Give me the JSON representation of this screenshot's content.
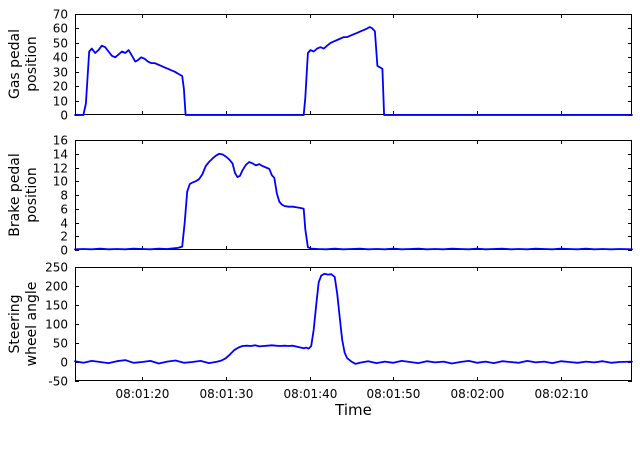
{
  "figure": {
    "background": "#ffffff",
    "line_color": "#0000ff",
    "axis_color": "#000000"
  },
  "x_axis": {
    "xlim": [
      72,
      138.5
    ],
    "xticks": [
      80,
      90,
      100,
      110,
      120,
      130
    ],
    "xtick_labels": [
      "08:01:20",
      "08:01:30",
      "08:01:40",
      "08:01:50",
      "08:02:00",
      "08:02:10"
    ],
    "xlabel": "Time"
  },
  "chart_data": [
    {
      "type": "line",
      "ylabel": "Gas pedal position",
      "ylabel_lines": [
        "Gas pedal",
        "position"
      ],
      "ylim": [
        0,
        70
      ],
      "yticks": [
        0,
        10,
        20,
        30,
        40,
        50,
        60,
        70
      ],
      "points": [
        [
          72,
          0
        ],
        [
          73,
          0
        ],
        [
          73.3,
          8
        ],
        [
          73.7,
          44
        ],
        [
          74,
          46
        ],
        [
          74.4,
          43
        ],
        [
          74.8,
          45
        ],
        [
          75.2,
          48
        ],
        [
          75.6,
          47
        ],
        [
          76,
          44
        ],
        [
          76.4,
          41
        ],
        [
          76.8,
          40
        ],
        [
          77.2,
          42
        ],
        [
          77.6,
          44
        ],
        [
          78,
          43
        ],
        [
          78.4,
          45
        ],
        [
          78.8,
          41
        ],
        [
          79.2,
          37
        ],
        [
          79.5,
          38
        ],
        [
          79.9,
          40
        ],
        [
          80.3,
          39
        ],
        [
          80.7,
          37
        ],
        [
          81.1,
          36
        ],
        [
          81.5,
          36
        ],
        [
          81.9,
          35
        ],
        [
          82.3,
          34
        ],
        [
          82.7,
          33
        ],
        [
          83.1,
          32
        ],
        [
          83.5,
          31
        ],
        [
          83.9,
          30
        ],
        [
          84.2,
          29
        ],
        [
          84.5,
          28
        ],
        [
          84.8,
          27
        ],
        [
          85,
          18
        ],
        [
          85.2,
          0
        ],
        [
          86,
          0
        ],
        [
          88,
          0
        ],
        [
          90,
          0
        ],
        [
          92,
          0
        ],
        [
          94,
          0
        ],
        [
          96,
          0
        ],
        [
          98,
          0
        ],
        [
          99.3,
          0
        ],
        [
          99.5,
          12
        ],
        [
          99.8,
          43
        ],
        [
          100.1,
          45
        ],
        [
          100.5,
          44
        ],
        [
          100.9,
          46
        ],
        [
          101.3,
          47
        ],
        [
          101.7,
          46
        ],
        [
          102.1,
          48
        ],
        [
          102.5,
          50
        ],
        [
          102.9,
          51
        ],
        [
          103.3,
          52
        ],
        [
          103.7,
          53
        ],
        [
          104.1,
          54
        ],
        [
          104.5,
          54
        ],
        [
          104.9,
          55
        ],
        [
          105.3,
          56
        ],
        [
          105.7,
          57
        ],
        [
          106.1,
          58
        ],
        [
          106.5,
          59
        ],
        [
          106.9,
          60
        ],
        [
          107.2,
          61
        ],
        [
          107.5,
          60
        ],
        [
          107.8,
          58
        ],
        [
          108.1,
          34
        ],
        [
          108.4,
          33
        ],
        [
          108.7,
          32
        ],
        [
          108.9,
          0
        ],
        [
          109.2,
          0
        ],
        [
          110,
          0
        ],
        [
          115,
          0
        ],
        [
          120,
          0
        ],
        [
          125,
          0
        ],
        [
          130,
          0
        ],
        [
          135,
          0
        ],
        [
          138.5,
          0
        ]
      ]
    },
    {
      "type": "line",
      "ylabel": "Brake pedal position",
      "ylabel_lines": [
        "Brake pedal",
        "position"
      ],
      "ylim": [
        0,
        16
      ],
      "yticks": [
        0,
        2,
        4,
        6,
        8,
        10,
        12,
        14,
        16
      ],
      "points": [
        [
          72,
          0.1
        ],
        [
          73,
          0.15
        ],
        [
          74,
          0.1
        ],
        [
          75,
          0.2
        ],
        [
          76,
          0.1
        ],
        [
          77,
          0.15
        ],
        [
          78,
          0.1
        ],
        [
          79,
          0.2
        ],
        [
          80,
          0.15
        ],
        [
          81,
          0.1
        ],
        [
          82,
          0.2
        ],
        [
          83,
          0.15
        ],
        [
          83.8,
          0.25
        ],
        [
          84.3,
          0.3
        ],
        [
          84.8,
          0.5
        ],
        [
          85.1,
          4.0
        ],
        [
          85.4,
          8.5
        ],
        [
          85.7,
          9.6
        ],
        [
          86,
          9.8
        ],
        [
          86.4,
          10.0
        ],
        [
          86.8,
          10.3
        ],
        [
          87.2,
          11.0
        ],
        [
          87.6,
          12.2
        ],
        [
          88,
          12.8
        ],
        [
          88.4,
          13.3
        ],
        [
          88.8,
          13.7
        ],
        [
          89.2,
          14.0
        ],
        [
          89.6,
          13.9
        ],
        [
          90,
          13.6
        ],
        [
          90.4,
          13.2
        ],
        [
          90.8,
          12.6
        ],
        [
          91.1,
          11.2
        ],
        [
          91.4,
          10.6
        ],
        [
          91.7,
          10.8
        ],
        [
          92,
          11.6
        ],
        [
          92.4,
          12.4
        ],
        [
          92.8,
          12.8
        ],
        [
          93.2,
          12.6
        ],
        [
          93.6,
          12.3
        ],
        [
          94,
          12.5
        ],
        [
          94.4,
          12.2
        ],
        [
          94.8,
          12.0
        ],
        [
          95.2,
          11.8
        ],
        [
          95.5,
          10.9
        ],
        [
          95.8,
          10.5
        ],
        [
          96.1,
          8.2
        ],
        [
          96.4,
          7.0
        ],
        [
          96.7,
          6.6
        ],
        [
          97,
          6.4
        ],
        [
          97.5,
          6.3
        ],
        [
          98,
          6.3
        ],
        [
          98.5,
          6.2
        ],
        [
          99,
          6.1
        ],
        [
          99.3,
          6.0
        ],
        [
          99.5,
          3.0
        ],
        [
          99.8,
          0.4
        ],
        [
          100.2,
          0.2
        ],
        [
          101,
          0.15
        ],
        [
          102,
          0.1
        ],
        [
          103,
          0.2
        ],
        [
          104,
          0.1
        ],
        [
          105,
          0.15
        ],
        [
          106,
          0.2
        ],
        [
          107,
          0.1
        ],
        [
          108,
          0.15
        ],
        [
          109,
          0.1
        ],
        [
          110,
          0.2
        ],
        [
          111,
          0.1
        ],
        [
          112,
          0.15
        ],
        [
          113,
          0.2
        ],
        [
          114,
          0.1
        ],
        [
          115,
          0.15
        ],
        [
          116,
          0.1
        ],
        [
          117,
          0.2
        ],
        [
          118,
          0.15
        ],
        [
          119,
          0.1
        ],
        [
          120,
          0.2
        ],
        [
          121,
          0.1
        ],
        [
          122,
          0.15
        ],
        [
          123,
          0.2
        ],
        [
          124,
          0.1
        ],
        [
          125,
          0.15
        ],
        [
          126,
          0.1
        ],
        [
          127,
          0.2
        ],
        [
          128,
          0.15
        ],
        [
          129,
          0.1
        ],
        [
          130,
          0.2
        ],
        [
          131,
          0.15
        ],
        [
          132,
          0.1
        ],
        [
          133,
          0.2
        ],
        [
          134,
          0.1
        ],
        [
          135,
          0.15
        ],
        [
          136,
          0.1
        ],
        [
          137,
          0.15
        ],
        [
          138.5,
          0.1
        ]
      ]
    },
    {
      "type": "line",
      "ylabel": "Steering wheel angle",
      "ylabel_lines": [
        "Steering",
        "wheel angle"
      ],
      "ylim": [
        -50,
        250
      ],
      "yticks": [
        -50,
        0,
        50,
        100,
        150,
        200,
        250
      ],
      "points": [
        [
          72,
          2
        ],
        [
          73,
          -2
        ],
        [
          74,
          3
        ],
        [
          75,
          0
        ],
        [
          76,
          -3
        ],
        [
          77,
          2
        ],
        [
          78,
          5
        ],
        [
          79,
          -2
        ],
        [
          80,
          0
        ],
        [
          81,
          3
        ],
        [
          82,
          -4
        ],
        [
          83,
          1
        ],
        [
          84,
          4
        ],
        [
          85,
          -2
        ],
        [
          86,
          0
        ],
        [
          87,
          3
        ],
        [
          88,
          -3
        ],
        [
          89,
          1
        ],
        [
          89.5,
          4
        ],
        [
          90,
          10
        ],
        [
          90.5,
          20
        ],
        [
          91,
          31
        ],
        [
          91.5,
          38
        ],
        [
          92,
          42
        ],
        [
          92.5,
          43
        ],
        [
          93,
          42
        ],
        [
          93.5,
          44
        ],
        [
          94,
          41
        ],
        [
          94.5,
          42
        ],
        [
          95,
          43
        ],
        [
          95.5,
          44
        ],
        [
          96,
          43
        ],
        [
          96.5,
          42
        ],
        [
          97,
          43
        ],
        [
          97.5,
          42
        ],
        [
          98,
          43
        ],
        [
          98.5,
          40
        ],
        [
          99,
          38
        ],
        [
          99.3,
          36
        ],
        [
          99.6,
          38
        ],
        [
          99.9,
          35
        ],
        [
          100.2,
          42
        ],
        [
          100.5,
          85
        ],
        [
          100.8,
          150
        ],
        [
          101.1,
          210
        ],
        [
          101.4,
          228
        ],
        [
          101.8,
          232
        ],
        [
          102.2,
          230
        ],
        [
          102.6,
          231
        ],
        [
          103,
          224
        ],
        [
          103.3,
          180
        ],
        [
          103.6,
          118
        ],
        [
          103.9,
          58
        ],
        [
          104.2,
          24
        ],
        [
          104.5,
          10
        ],
        [
          105,
          1
        ],
        [
          105.5,
          -5
        ],
        [
          106,
          -2
        ],
        [
          107,
          2
        ],
        [
          108,
          -3
        ],
        [
          109,
          1
        ],
        [
          110,
          -2
        ],
        [
          111,
          3
        ],
        [
          112,
          0
        ],
        [
          113,
          -3
        ],
        [
          114,
          2
        ],
        [
          115,
          -1
        ],
        [
          116,
          1
        ],
        [
          117,
          -4
        ],
        [
          118,
          0
        ],
        [
          119,
          3
        ],
        [
          120,
          -2
        ],
        [
          121,
          1
        ],
        [
          122,
          -3
        ],
        [
          123,
          2
        ],
        [
          124,
          0
        ],
        [
          125,
          -2
        ],
        [
          126,
          3
        ],
        [
          127,
          -1
        ],
        [
          128,
          1
        ],
        [
          129,
          -3
        ],
        [
          130,
          2
        ],
        [
          131,
          0
        ],
        [
          132,
          -2
        ],
        [
          133,
          1
        ],
        [
          134,
          -1
        ],
        [
          135,
          2
        ],
        [
          136,
          -2
        ],
        [
          137,
          0
        ],
        [
          138.5,
          1
        ]
      ]
    }
  ]
}
